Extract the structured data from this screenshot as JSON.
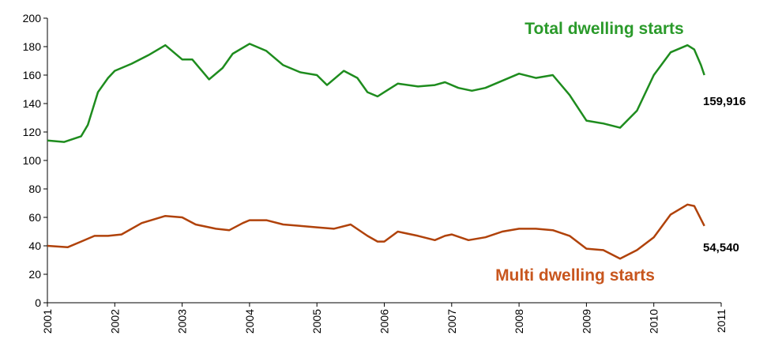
{
  "chart_data": {
    "type": "line",
    "series": [
      {
        "name": "Total dwelling starts",
        "color": "#1e8c1e",
        "x": [
          2001.0,
          2001.25,
          2001.5,
          2001.6,
          2001.75,
          2001.9,
          2002.0,
          2002.25,
          2002.5,
          2002.75,
          2003.0,
          2003.15,
          2003.4,
          2003.6,
          2003.75,
          2004.0,
          2004.25,
          2004.5,
          2004.75,
          2005.0,
          2005.15,
          2005.4,
          2005.6,
          2005.75,
          2005.9,
          2006.0,
          2006.2,
          2006.5,
          2006.75,
          2006.9,
          2007.1,
          2007.3,
          2007.5,
          2007.75,
          2008.0,
          2008.25,
          2008.5,
          2008.75,
          2009.0,
          2009.25,
          2009.5,
          2009.75,
          2010.0,
          2010.25,
          2010.5,
          2010.6,
          2010.7,
          2010.75
        ],
        "values": [
          114,
          113,
          117,
          125,
          148,
          158,
          163,
          168,
          174,
          181,
          171,
          171,
          157,
          165,
          175,
          182,
          177,
          167,
          162,
          160,
          153,
          163,
          158,
          148,
          145,
          148,
          154,
          152,
          153,
          155,
          151,
          149,
          151,
          156,
          161,
          158,
          160,
          146,
          128,
          126,
          123,
          135,
          160,
          176,
          181,
          178,
          167,
          160
        ]
      },
      {
        "name": "Multi dwelling starts",
        "color": "#b0420a",
        "x": [
          2001.0,
          2001.3,
          2001.5,
          2001.7,
          2001.9,
          2002.1,
          2002.4,
          2002.75,
          2003.0,
          2003.2,
          2003.5,
          2003.7,
          2003.9,
          2004.0,
          2004.25,
          2004.5,
          2004.75,
          2005.0,
          2005.25,
          2005.5,
          2005.75,
          2005.9,
          2006.0,
          2006.2,
          2006.5,
          2006.75,
          2006.9,
          2007.0,
          2007.25,
          2007.5,
          2007.75,
          2008.0,
          2008.25,
          2008.5,
          2008.75,
          2009.0,
          2009.25,
          2009.5,
          2009.75,
          2010.0,
          2010.25,
          2010.5,
          2010.6,
          2010.75
        ],
        "values": [
          40,
          39,
          43,
          47,
          47,
          48,
          56,
          61,
          60,
          55,
          52,
          51,
          56,
          58,
          58,
          55,
          54,
          53,
          52,
          55,
          47,
          43,
          43,
          50,
          47,
          44,
          47,
          48,
          44,
          46,
          50,
          52,
          52,
          51,
          47,
          38,
          37,
          31,
          37,
          46,
          62,
          69,
          68,
          54
        ]
      }
    ],
    "series_label_colors": [
      "#2a9a2a",
      "#c8561e"
    ],
    "annotations": [
      "159,916",
      "54,540"
    ],
    "xlim": [
      2001,
      2011
    ],
    "xticks": [
      2001,
      2002,
      2003,
      2004,
      2005,
      2006,
      2007,
      2008,
      2009,
      2010,
      2011
    ],
    "ylim": [
      0,
      200
    ],
    "yticks": [
      0,
      20,
      40,
      60,
      80,
      100,
      120,
      140,
      160,
      180,
      200
    ],
    "grid": false
  }
}
